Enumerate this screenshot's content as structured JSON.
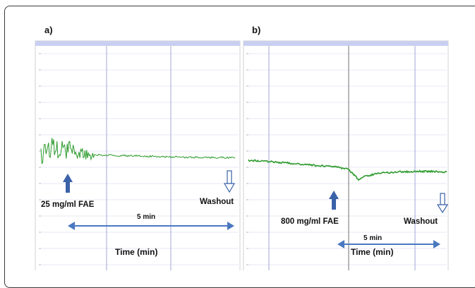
{
  "panels": [
    {
      "label": "a)",
      "annotations": {
        "dose": "25 mg/ml FAE",
        "washout": "Washout",
        "duration": "5 min",
        "time_axis": "Time (min)"
      }
    },
    {
      "label": "b)",
      "annotations": {
        "dose": "800 mg/ml FAE",
        "washout": "Washout",
        "duration": "5 min",
        "time_axis": "Time (min)"
      }
    }
  ],
  "colors": {
    "trace": "#2e9b2e",
    "arrow_dose": "#3a62a8",
    "arrow_span": "#4a78c0",
    "header_bar": "#c9cff0",
    "gridline": "#dfe3f0",
    "marker_line": "#9a9ad8"
  },
  "chart_data": [
    {
      "type": "line",
      "panel": "a)",
      "xlabel": "Time (min)",
      "ylabel": "",
      "x_unit": "min",
      "series": [
        {
          "x": [
            0,
            0.5,
            1,
            1.5,
            2,
            3,
            4,
            5,
            6,
            7,
            8
          ],
          "y": [
            0.0,
            0.9,
            0.5,
            0.2,
            0.1,
            0.05,
            0.0,
            -0.05,
            -0.1,
            -0.12,
            -0.12
          ]
        }
      ],
      "events": [
        {
          "label": "25 mg/ml FAE",
          "x": 1.2
        },
        {
          "label": "Washout",
          "x": 8.0
        }
      ],
      "span": {
        "label": "5 min",
        "from": 1.2,
        "to": 8.0
      }
    },
    {
      "type": "line",
      "panel": "b)",
      "xlabel": "Time (min)",
      "ylabel": "",
      "x_unit": "min",
      "series": [
        {
          "x": [
            0,
            1,
            2,
            3,
            4,
            4.5,
            5,
            5.3,
            6,
            7,
            8,
            9
          ],
          "y": [
            0.0,
            -0.03,
            -0.08,
            -0.12,
            -0.16,
            -0.2,
            -0.45,
            -0.38,
            -0.3,
            -0.27,
            -0.26,
            -0.28
          ]
        }
      ],
      "events": [
        {
          "label": "800 mg/ml FAE",
          "x": 3.8
        },
        {
          "label": "Washout",
          "x": 9.0
        }
      ],
      "span": {
        "label": "5 min",
        "from": 4.4,
        "to": 9.0
      }
    }
  ]
}
